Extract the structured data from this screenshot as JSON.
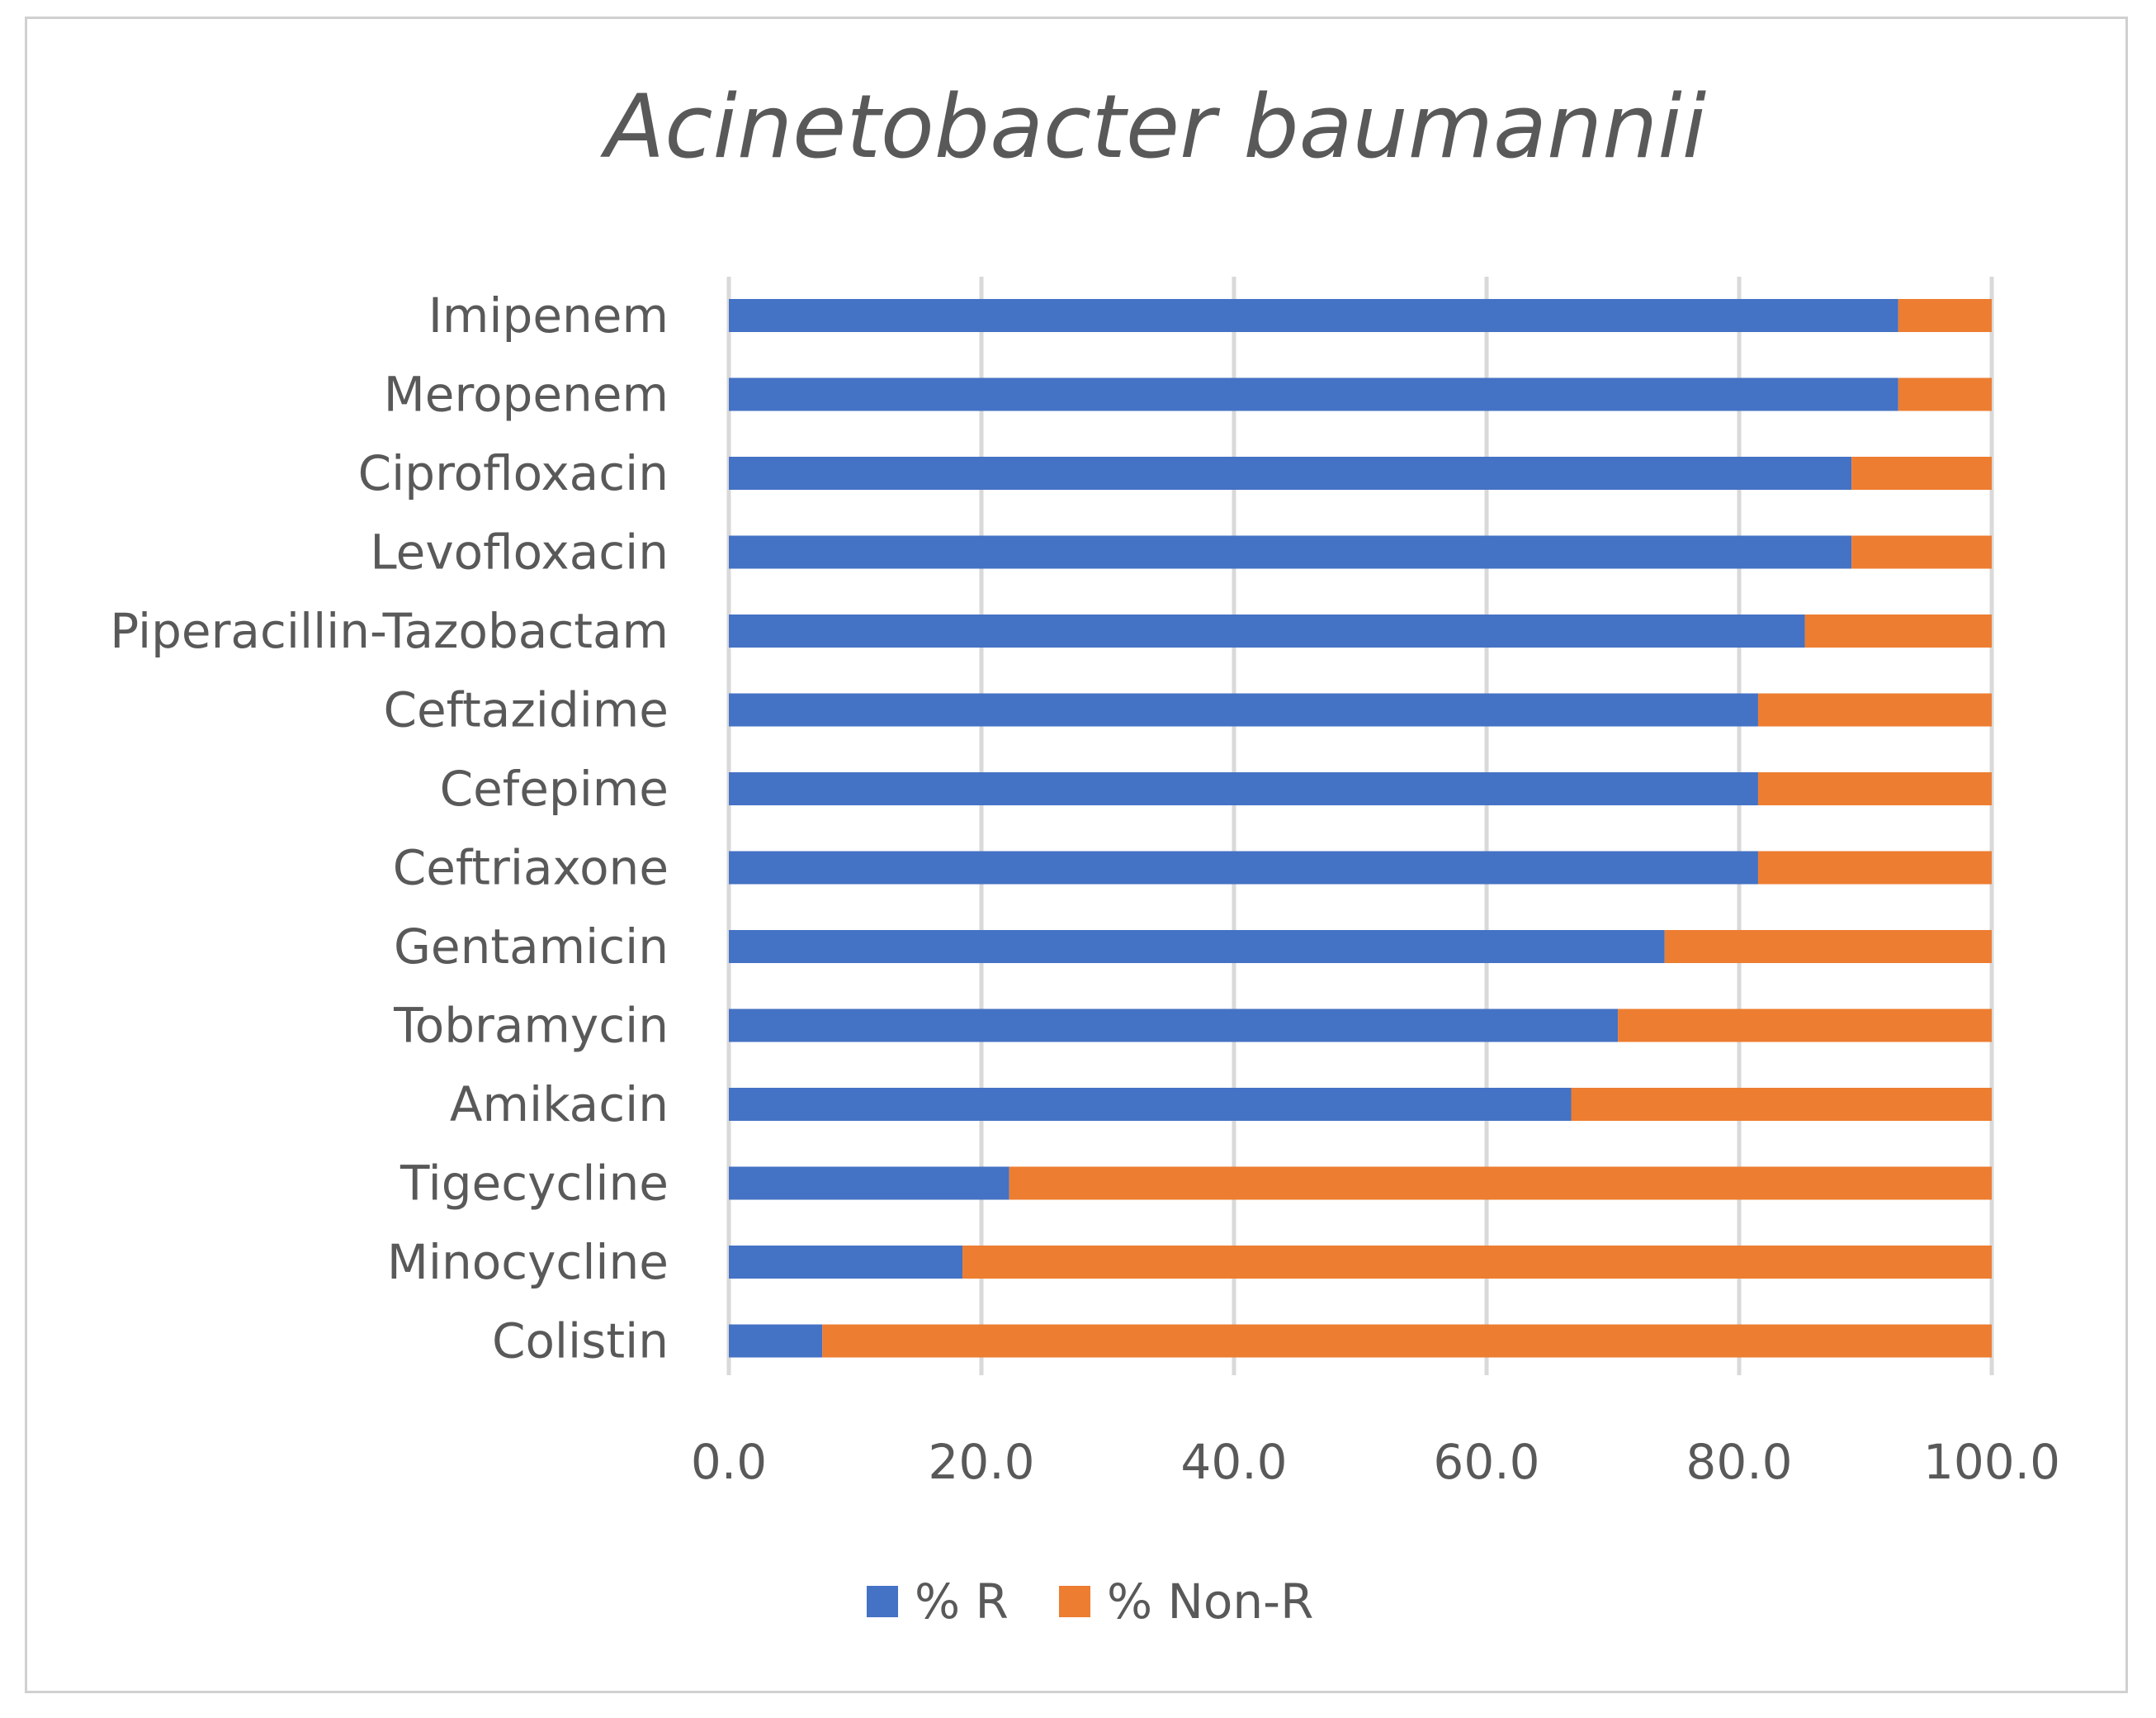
{
  "chart_data": {
    "type": "bar",
    "orientation": "horizontal",
    "stacked": true,
    "title": "Acinetobacter baumannii",
    "xlabel": "",
    "ylabel": "",
    "xlim": [
      0,
      100
    ],
    "x_ticks": [
      "0.0",
      "20.0",
      "40.0",
      "60.0",
      "80.0",
      "100.0"
    ],
    "x_tick_values": [
      0,
      20,
      40,
      60,
      80,
      100
    ],
    "grid": true,
    "legend_position": "bottom",
    "categories": [
      "Imipenem",
      "Meropenem",
      "Ciprofloxacin",
      "Levofloxacin",
      "Piperacillin-Tazobactam",
      "Ceftazidime",
      "Cefepime",
      "Ceftriaxone",
      "Gentamicin",
      "Tobramycin",
      "Amikacin",
      "Tigecycline",
      "Minocycline",
      "Colistin"
    ],
    "series": [
      {
        "name": "% R",
        "color": "#4472c4",
        "values": [
          92.6,
          92.6,
          88.9,
          88.9,
          85.2,
          81.5,
          81.5,
          81.5,
          74.1,
          70.4,
          66.7,
          22.2,
          18.5,
          7.4
        ]
      },
      {
        "name": "% Non-R",
        "color": "#ed7d31",
        "values": [
          7.4,
          7.4,
          11.1,
          11.1,
          14.8,
          18.5,
          18.5,
          18.5,
          25.9,
          29.6,
          33.3,
          77.8,
          81.5,
          92.6
        ]
      }
    ]
  }
}
